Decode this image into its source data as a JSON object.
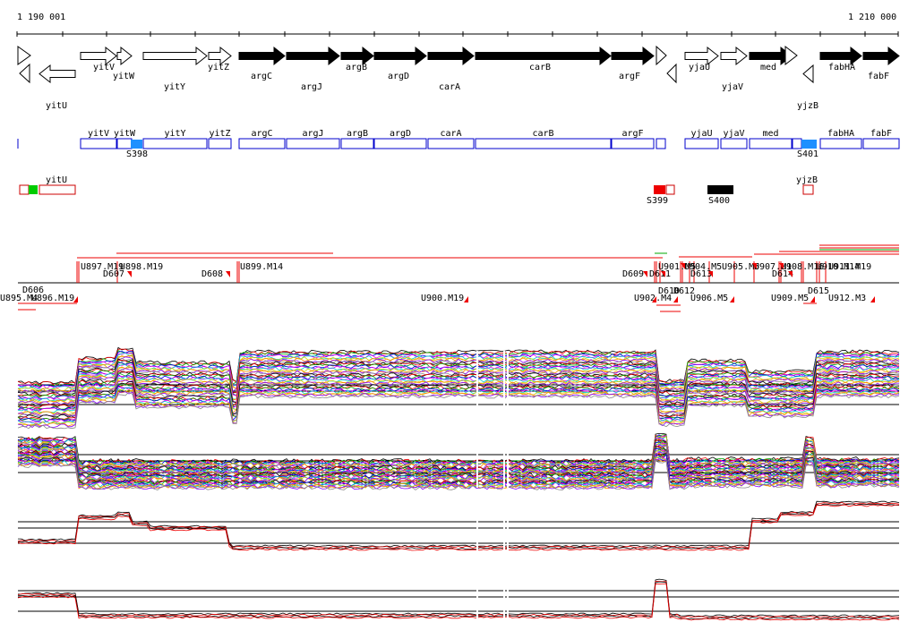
{
  "ruler": {
    "left_label": "1 190 001",
    "right_label": "1 210 000"
  },
  "genes_top": [
    {
      "name": "yitV",
      "dir": 1,
      "color": "white"
    },
    {
      "name": "yitW",
      "dir": 1,
      "color": "white"
    },
    {
      "name": "yitY",
      "dir": 1,
      "color": "white"
    },
    {
      "name": "yitZ",
      "dir": 1,
      "color": "white"
    },
    {
      "name": "argC",
      "dir": 1,
      "color": "black"
    },
    {
      "name": "argJ",
      "dir": 1,
      "color": "black"
    },
    {
      "name": "argB",
      "dir": 1,
      "color": "black"
    },
    {
      "name": "argD",
      "dir": 1,
      "color": "black"
    },
    {
      "name": "carA",
      "dir": 1,
      "color": "black"
    },
    {
      "name": "carB",
      "dir": 1,
      "color": "black"
    },
    {
      "name": "argF",
      "dir": 1,
      "color": "black"
    },
    {
      "name": "yjaU",
      "dir": 1,
      "color": "white"
    },
    {
      "name": "yjaV",
      "dir": 1,
      "color": "white"
    },
    {
      "name": "med",
      "dir": 1,
      "color": "black"
    },
    {
      "name": "fabHA",
      "dir": 1,
      "color": "black"
    },
    {
      "name": "fabF",
      "dir": 1,
      "color": "black"
    },
    {
      "name": "yitU",
      "dir": -1,
      "color": "white"
    },
    {
      "name": "yjzB",
      "dir": -1,
      "color": "white"
    }
  ],
  "gene_box_labels": [
    "yitV",
    "yitW",
    "yitY",
    "yitZ",
    "argC",
    "argJ",
    "argB",
    "argD",
    "carA",
    "carB",
    "argF",
    "yjaU",
    "yjaV",
    "med",
    "fabHA",
    "fabF"
  ],
  "sites_top": [
    "S398",
    "S401"
  ],
  "strand_minus_labels": [
    "yitU",
    "yjzB"
  ],
  "sites_minus": [
    "S399",
    "S400"
  ],
  "segments_upper": [
    "U897.M19",
    "U898.M19",
    "U899.M14",
    "U901.M5",
    "U904.M5",
    "U905.M5",
    "U907.M1",
    "U908.M16",
    "U910.M14",
    "U911.M19"
  ],
  "segments_D_upper": [
    "D607",
    "D608",
    "D609",
    "D611",
    "D613",
    "D614"
  ],
  "segments_lower": [
    "U895.M4",
    "U896.M19",
    "U900.M19",
    "U902.M4",
    "U906.M5",
    "U909.M5",
    "U912.M3"
  ],
  "segments_D_lower": [
    "D606",
    "D610",
    "D612",
    "D615"
  ],
  "tracks": [
    {
      "name": "expression-panel-1",
      "colors": [
        "#000",
        "#e00",
        "#0a0",
        "#00e",
        "#e0e",
        "#0cc",
        "#cc0",
        "#f80",
        "#80f",
        "#888"
      ]
    },
    {
      "name": "expression-panel-2",
      "colors": [
        "#000",
        "#e00",
        "#0a0",
        "#00e",
        "#e0e",
        "#0cc",
        "#cc0",
        "#f80",
        "#80f",
        "#888"
      ]
    },
    {
      "name": "expression-panel-3",
      "colors": [
        "#000",
        "#e00"
      ]
    },
    {
      "name": "expression-panel-4",
      "colors": [
        "#000",
        "#e00"
      ]
    }
  ]
}
